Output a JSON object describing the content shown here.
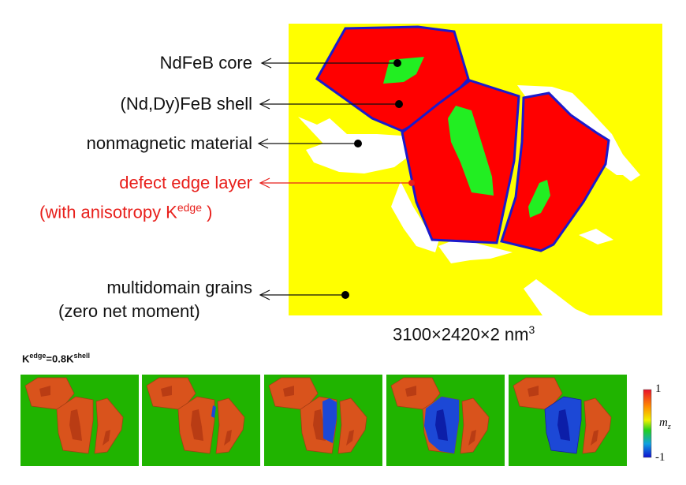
{
  "labels": {
    "core": "NdFeB core",
    "shell": "(Nd,Dy)FeB shell",
    "nonmagnetic": "nonmagnetic material",
    "defect_line1": "defect edge layer",
    "defect_line2_pre": "(with anisotropy K",
    "defect_line2_sup": "edge",
    "defect_line2_post": " )",
    "multidomain_line1": "multidomain grains",
    "multidomain_line2": "(zero net moment)"
  },
  "dimensions": {
    "base": "3100×2420×2 nm",
    "exp": "3"
  },
  "panel_caption": {
    "k1": "K",
    "sup1": "edge",
    "mid": "=0.8K",
    "sup2": "shell"
  },
  "colorbar": {
    "max": "1",
    "min": "-1",
    "symbol": "m",
    "subscript": "z"
  },
  "colors": {
    "yellow": "#ffff00",
    "red": "#ff0000",
    "green": "#22ee22",
    "blue_outline": "#1a1acc",
    "panel_green": "#20b400",
    "panel_red": "#d9531c",
    "panel_blue": "#1c48d6",
    "label_red": "#e8201c"
  },
  "panels_count": 5
}
